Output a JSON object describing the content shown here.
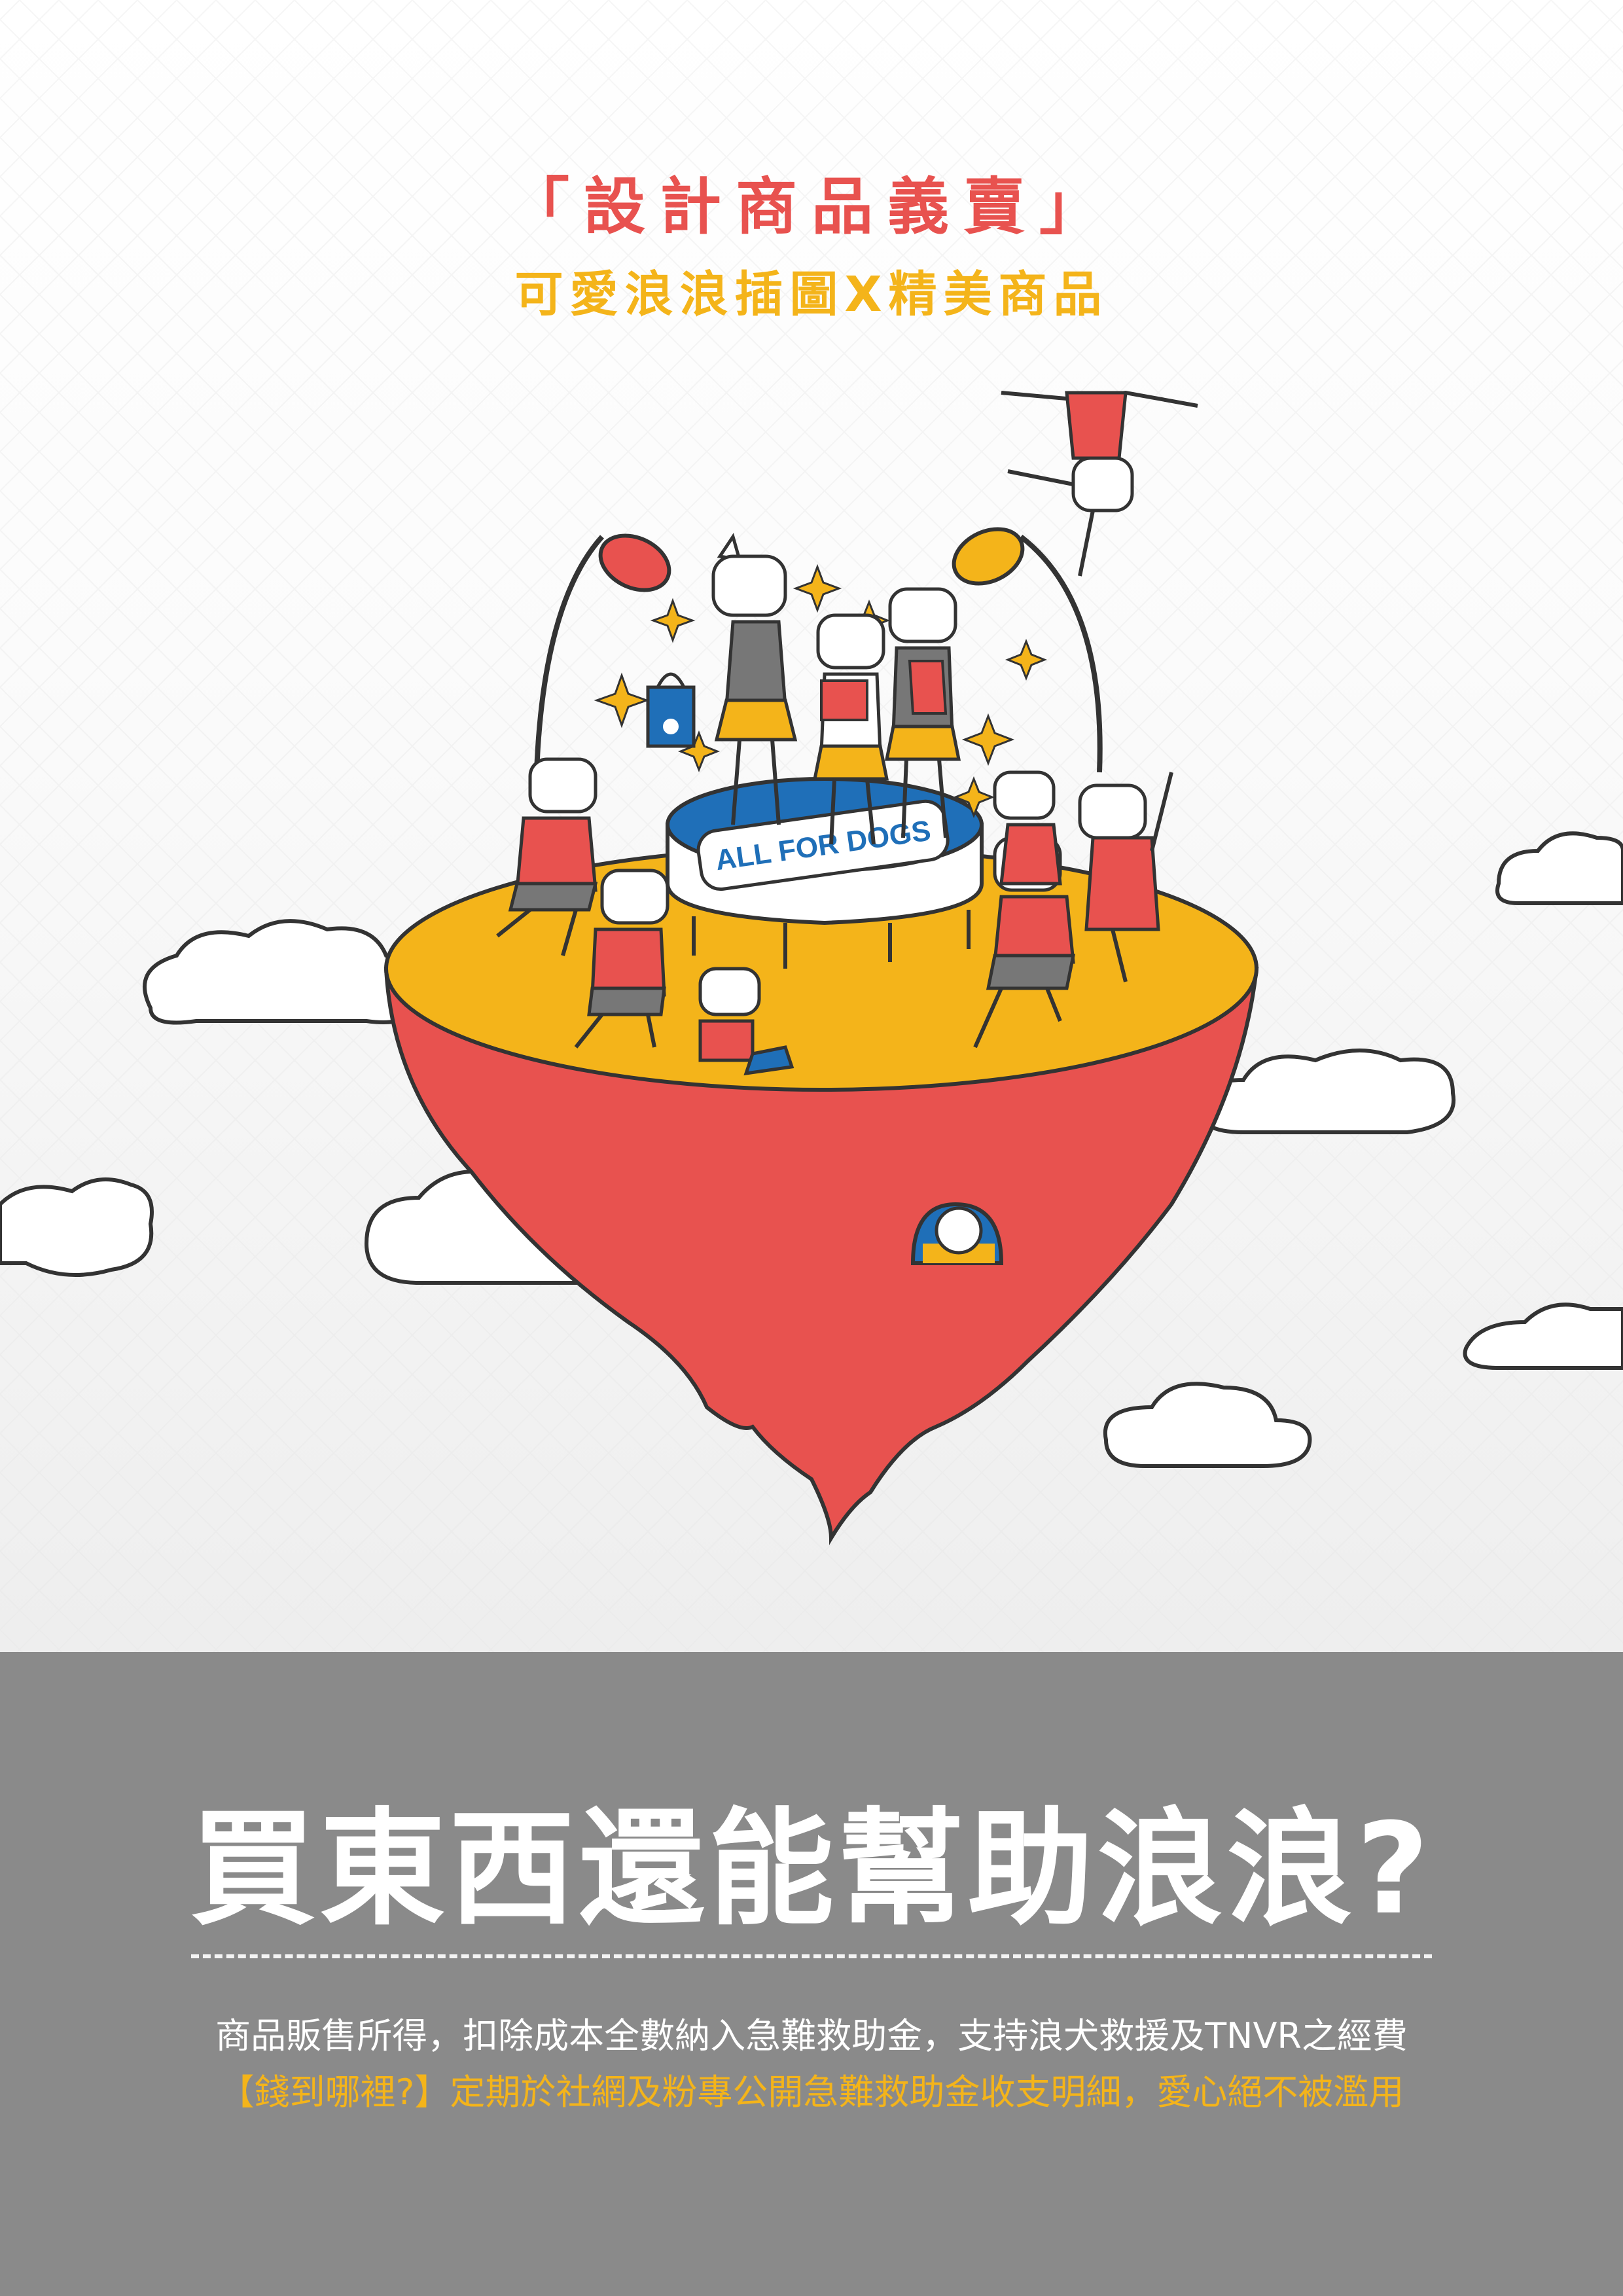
{
  "colors": {
    "red": "#e8524f",
    "yellow": "#f4b41a",
    "blue": "#1f6fb8",
    "panel_gray": "#8a8a8a",
    "outline": "#333333",
    "white": "#ffffff"
  },
  "header": {
    "title": "「設計商品義賣」",
    "subtitle": "可愛浪浪插圖X精美商品"
  },
  "illustration": {
    "stage_banner": "ALL FOR DOGS"
  },
  "panel": {
    "question": "買東西還能幫助浪浪?",
    "description": "商品販售所得，扣除成本全數納入急難救助金，支持浪犬救援及TNVR之經費",
    "note": "【錢到哪裡?】定期於社網及粉專公開急難救助金收支明細，愛心絕不被濫用"
  },
  "icons": [
    "sparkle-icon",
    "paw-icon",
    "cloud-icon",
    "spotlight-icon"
  ]
}
